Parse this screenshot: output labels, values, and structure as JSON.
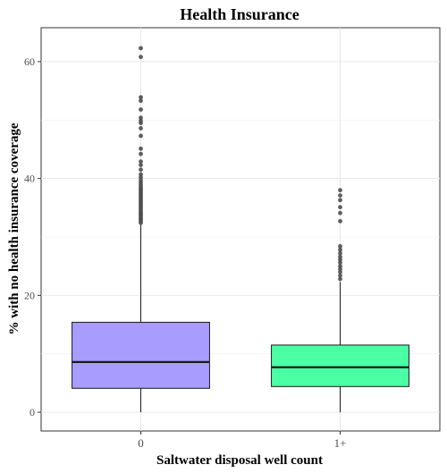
{
  "chart_data": {
    "type": "boxplot",
    "title": "Health Insurance",
    "xlabel": "Saltwater disposal well count",
    "ylabel": "% with no health insurance coverage",
    "ylim": [
      -3.2,
      65.8
    ],
    "yticks": [
      "0",
      "20",
      "40",
      "60"
    ],
    "grid": true,
    "categories": [
      "0",
      "1+"
    ],
    "boxes": [
      {
        "category": "0",
        "color": "#A89CFF",
        "min": 0,
        "q1": 4.1,
        "median": 8.6,
        "q3": 15.4,
        "whisker_high": 32.2,
        "outliers": [
          32.4,
          32.7,
          33.0,
          33.2,
          33.5,
          33.8,
          34.0,
          34.3,
          34.6,
          34.9,
          35.2,
          35.5,
          35.8,
          36.1,
          36.4,
          36.7,
          37.0,
          37.3,
          37.6,
          37.9,
          38.2,
          38.5,
          38.9,
          39.3,
          39.7,
          40.2,
          40.7,
          41.5,
          42.3,
          42.9,
          44.2,
          45.1,
          47.3,
          48.6,
          49.5,
          49.9,
          50.4,
          51.8,
          53.3,
          53.9,
          60.8,
          62.3
        ]
      },
      {
        "category": "1+",
        "color": "#4BFFA5",
        "min": 0,
        "q1": 4.4,
        "median": 7.7,
        "q3": 11.5,
        "whisker_high": 22.3,
        "outliers": [
          22.8,
          23.4,
          24.0,
          24.5,
          25.0,
          25.6,
          26.1,
          26.6,
          27.2,
          27.8,
          28.4,
          32.7,
          34.1,
          35.1,
          36.3,
          37.1,
          38.0
        ]
      }
    ]
  }
}
